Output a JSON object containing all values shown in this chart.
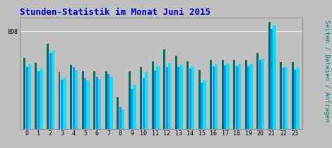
{
  "title": "Stunden-Statistik im Monat Juni 2015",
  "title_color": "#0000cc",
  "title_fontsize": 9,
  "ylabel_right": "Seiten / Dateien / Anfragen",
  "ylabel_right_color": "#008080",
  "ylabel_right_fontsize": 6.5,
  "ytick_label": "898",
  "background_color": "#c0c0c0",
  "plot_bg_color": "#c0c0c0",
  "hours": [
    0,
    1,
    2,
    3,
    4,
    5,
    6,
    7,
    8,
    9,
    10,
    11,
    12,
    13,
    14,
    15,
    16,
    17,
    18,
    19,
    20,
    21,
    22,
    23
  ],
  "series1_color": "#007060",
  "series2_color": "#1e90ff",
  "series3_color": "#00e5ff",
  "series1": [
    650,
    610,
    780,
    520,
    590,
    530,
    530,
    530,
    290,
    530,
    570,
    620,
    730,
    670,
    620,
    540,
    630,
    635,
    635,
    635,
    700,
    980,
    615,
    615
  ],
  "series2": [
    570,
    530,
    695,
    450,
    565,
    465,
    475,
    505,
    200,
    365,
    465,
    535,
    565,
    565,
    555,
    425,
    575,
    580,
    575,
    575,
    630,
    920,
    560,
    545
  ],
  "series3": [
    595,
    555,
    715,
    465,
    545,
    445,
    460,
    475,
    180,
    405,
    520,
    575,
    605,
    590,
    575,
    445,
    595,
    600,
    595,
    595,
    645,
    950,
    570,
    560
  ]
}
